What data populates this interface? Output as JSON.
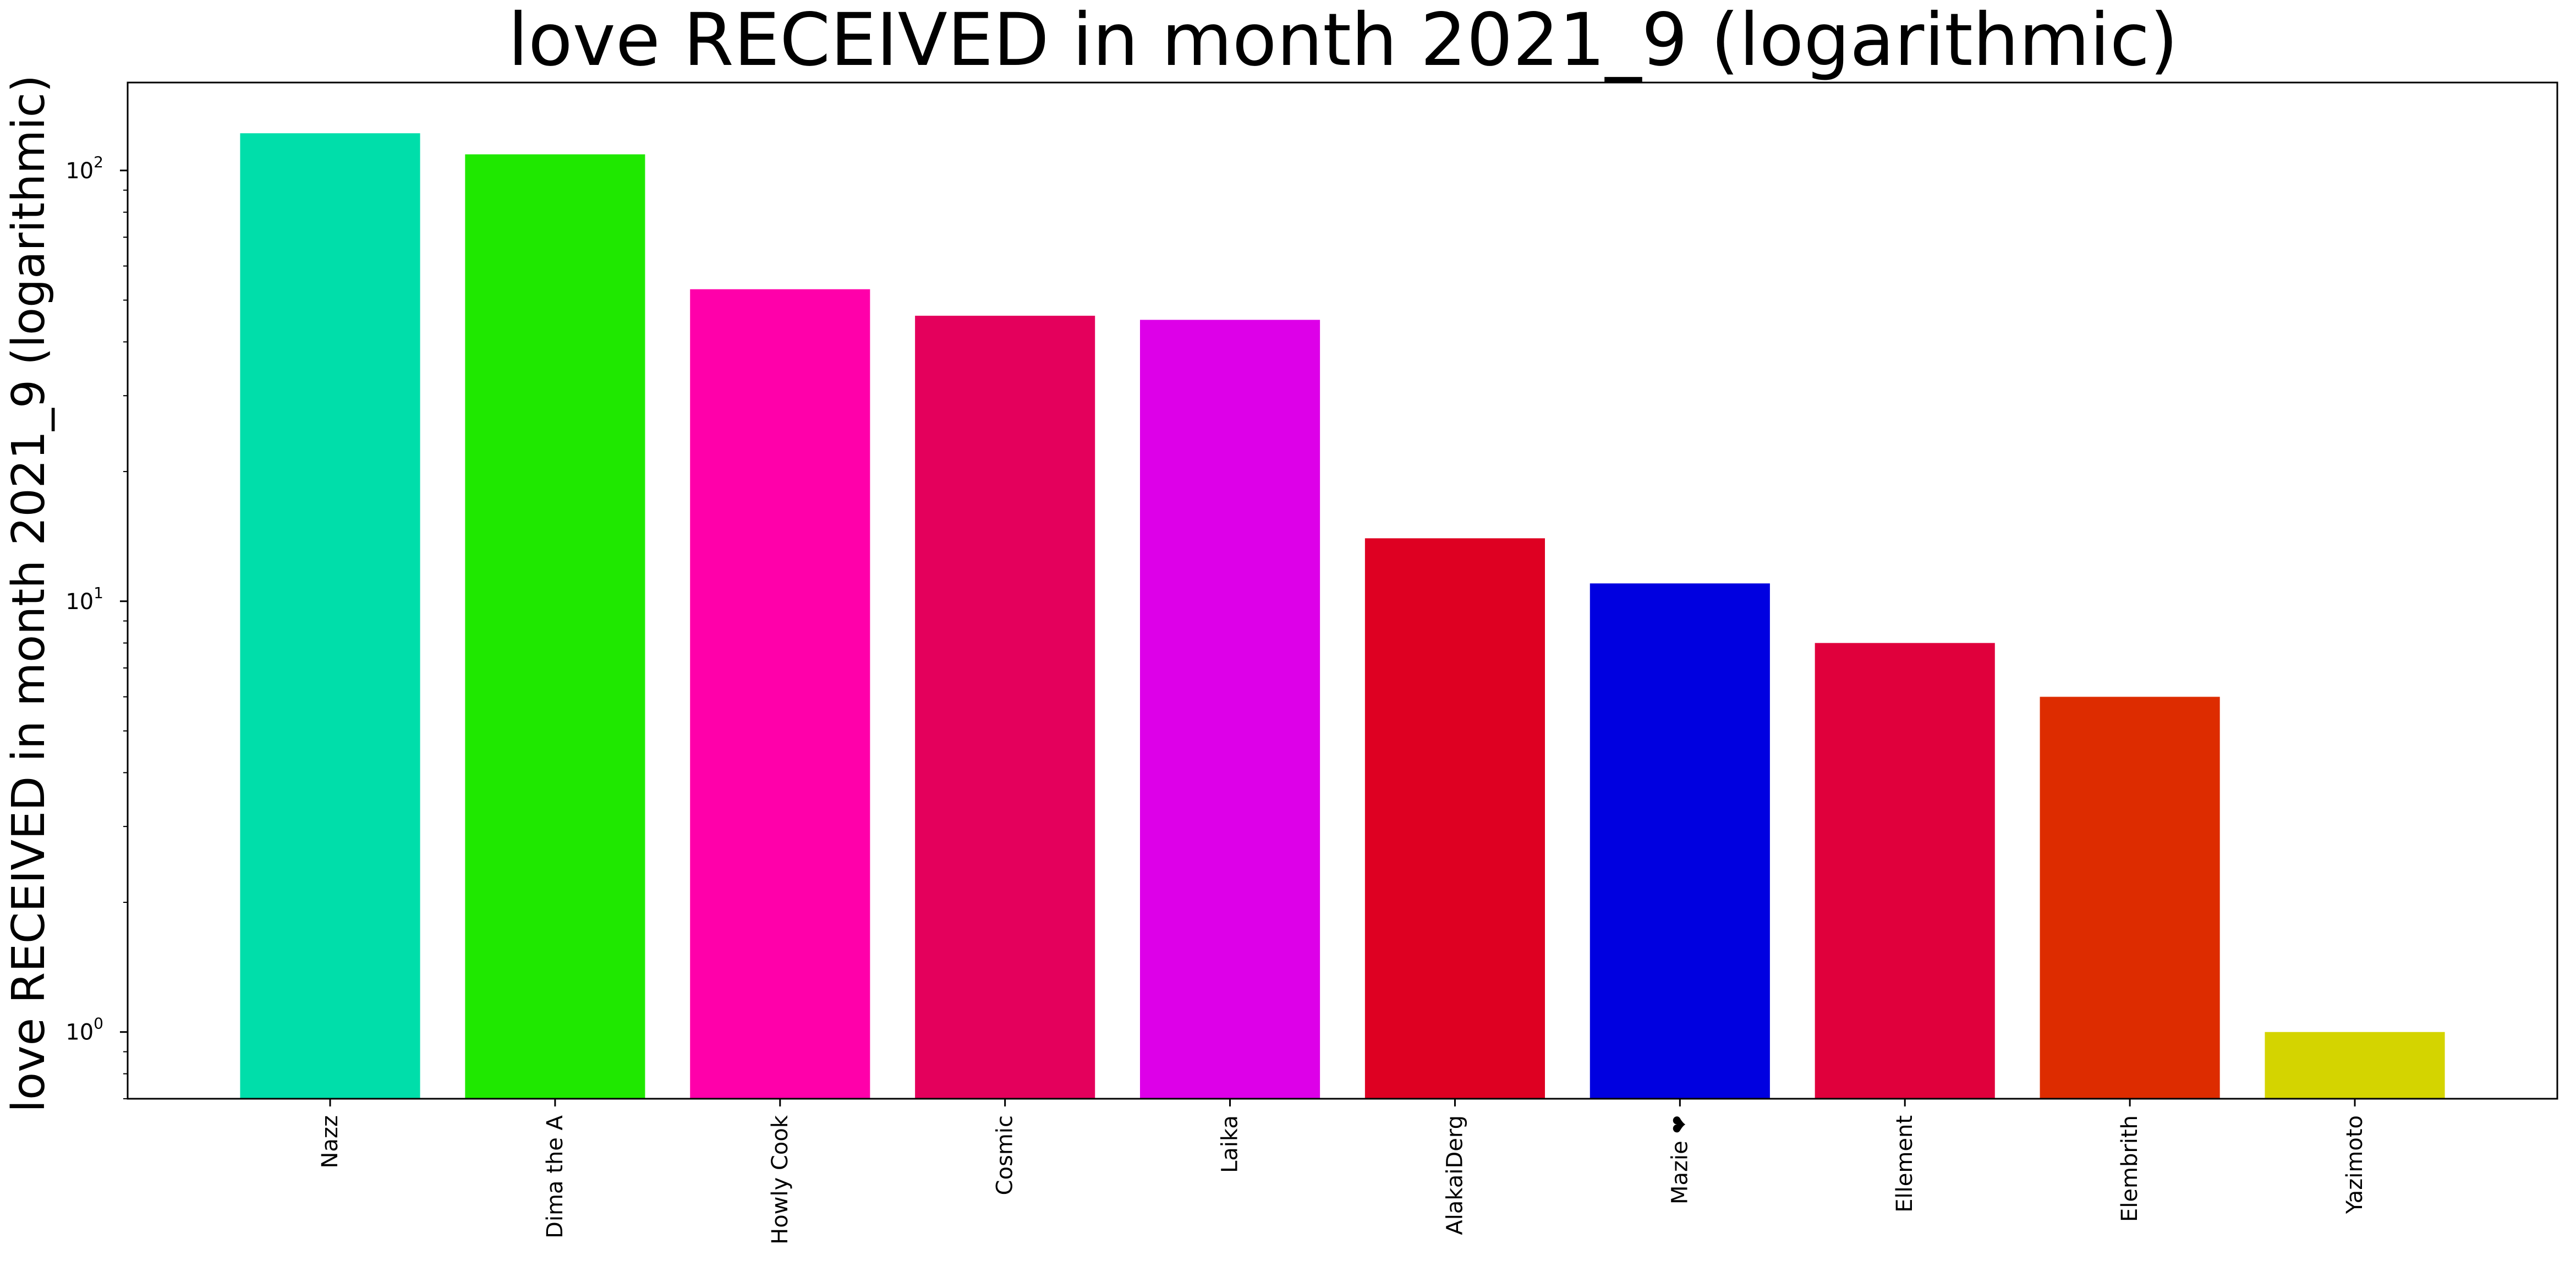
{
  "chart_data": {
    "type": "bar",
    "title": "love RECEIVED in month 2021_9 (logarithmic)",
    "xlabel": "",
    "ylabel": "love RECEIVED in month 2021_9 (logarithmic)",
    "yscale": "log",
    "ylim": [
      0.7,
      160
    ],
    "yticks": [
      {
        "value": 1,
        "base": "10",
        "exp": "0"
      },
      {
        "value": 10,
        "base": "10",
        "exp": "1"
      },
      {
        "value": 100,
        "base": "10",
        "exp": "2"
      }
    ],
    "categories": [
      "Nazz",
      "Dima the A",
      "Howly Cook",
      "Cosmic",
      "Laika",
      "AlakaiDerg",
      "Mazie ❤",
      "Ellement",
      "Elembrith",
      "Yazimoto"
    ],
    "values": [
      122,
      109,
      53,
      46,
      45,
      14,
      11,
      8,
      6,
      1
    ],
    "colors": [
      "#00deaa",
      "#1fe800",
      "#ff00aa",
      "#e4005c",
      "#dd00e8",
      "#de0022",
      "#0000e0",
      "#e0003c",
      "#dd2c00",
      "#d4d400"
    ],
    "grid": false,
    "legend": "none"
  }
}
